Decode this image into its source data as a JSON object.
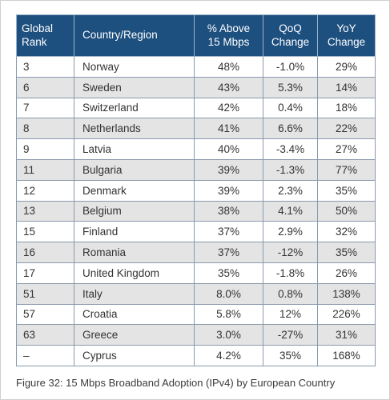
{
  "table": {
    "headers": {
      "rank": [
        "Global",
        "Rank"
      ],
      "country": "Country/Region",
      "above": [
        "% Above",
        "15 Mbps"
      ],
      "qoq": [
        "QoQ",
        "Change"
      ],
      "yoy": [
        "YoY",
        "Change"
      ]
    },
    "rows": [
      {
        "rank": "3",
        "country": "Norway",
        "above": "48%",
        "qoq": "-1.0%",
        "yoy": "29%"
      },
      {
        "rank": "6",
        "country": "Sweden",
        "above": "43%",
        "qoq": "5.3%",
        "yoy": "14%"
      },
      {
        "rank": "7",
        "country": "Switzerland",
        "above": "42%",
        "qoq": "0.4%",
        "yoy": "18%"
      },
      {
        "rank": "8",
        "country": "Netherlands",
        "above": "41%",
        "qoq": "6.6%",
        "yoy": "22%"
      },
      {
        "rank": "9",
        "country": "Latvia",
        "above": "40%",
        "qoq": "-3.4%",
        "yoy": "27%"
      },
      {
        "rank": "11",
        "country": "Bulgaria",
        "above": "39%",
        "qoq": "-1.3%",
        "yoy": "77%"
      },
      {
        "rank": "12",
        "country": "Denmark",
        "above": "39%",
        "qoq": "2.3%",
        "yoy": "35%"
      },
      {
        "rank": "13",
        "country": "Belgium",
        "above": "38%",
        "qoq": "4.1%",
        "yoy": "50%"
      },
      {
        "rank": "15",
        "country": "Finland",
        "above": "37%",
        "qoq": "2.9%",
        "yoy": "32%"
      },
      {
        "rank": "16",
        "country": "Romania",
        "above": "37%",
        "qoq": "-12%",
        "yoy": "35%"
      },
      {
        "rank": "17",
        "country": "United Kingdom",
        "above": "35%",
        "qoq": "-1.8%",
        "yoy": "26%"
      },
      {
        "rank": "51",
        "country": "Italy",
        "above": "8.0%",
        "qoq": "0.8%",
        "yoy": "138%"
      },
      {
        "rank": "57",
        "country": "Croatia",
        "above": "5.8%",
        "qoq": "12%",
        "yoy": "226%"
      },
      {
        "rank": "63",
        "country": "Greece",
        "above": "3.0%",
        "qoq": "-27%",
        "yoy": "31%"
      },
      {
        "rank": "–",
        "country": "Cyprus",
        "above": "4.2%",
        "qoq": "35%",
        "yoy": "168%"
      }
    ]
  },
  "caption": "Figure 32: 15 Mbps Broadband Adoption (IPv4) by European Country",
  "colors": {
    "header_bg": "#1d4f7f",
    "stripe": "#e4e4e4"
  }
}
